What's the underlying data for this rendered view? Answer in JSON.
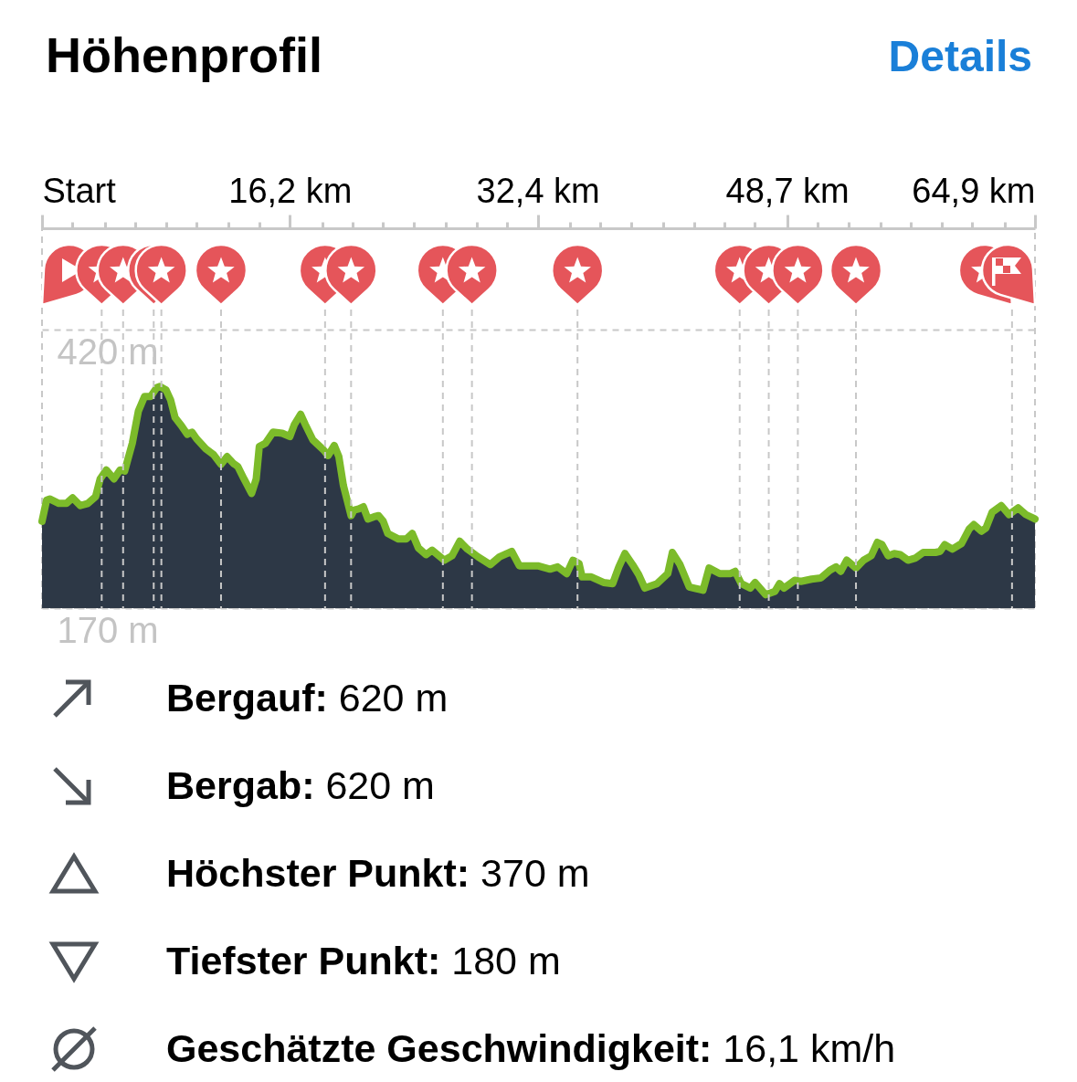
{
  "chart_data": {
    "type": "area",
    "title": "Höhenprofil",
    "annotations": [
      "Details",
      "Bergauf: 620 m",
      "Bergab: 620 m",
      "Höchster Punkt: 370 m",
      "Tiefster Punkt: 180 m",
      "Geschätzte Geschwindigkeit: 16,1 km/h"
    ],
    "x": [
      0,
      0.3,
      0.5,
      1.1,
      1.6,
      2.0,
      2.5,
      3.0,
      3.5,
      3.8,
      4.2,
      4.7,
      5.1,
      5.4,
      5.9,
      6.3,
      6.7,
      7.1,
      7.5,
      7.7,
      8.1,
      8.4,
      8.7,
      9.1,
      9.5,
      9.8,
      10.1,
      10.7,
      11.2,
      11.7,
      12.1,
      12.5,
      12.8,
      13.2,
      13.7,
      14.0,
      14.2,
      14.6,
      15.1,
      15.7,
      16.2,
      16.5,
      16.9,
      17.2,
      17.7,
      18.4,
      18.7,
      19.1,
      19.4,
      19.7,
      20.2,
      20.4,
      20.7,
      21.0,
      21.3,
      21.7,
      22.0,
      22.3,
      22.6,
      23.3,
      23.8,
      24.2,
      24.6,
      25.1,
      25.5,
      26.3,
      26.8,
      27.3,
      27.8,
      28.5,
      29.3,
      29.9,
      30.7,
      31.2,
      32.1,
      32.4,
      33.2,
      33.7,
      34.3,
      34.7,
      35.1,
      35.3,
      35.9,
      36.7,
      37.3,
      37.7,
      38.1,
      38.6,
      39.0,
      39.4,
      40.2,
      40.9,
      41.2,
      41.7,
      42.3,
      43.2,
      43.6,
      44.3,
      45.0,
      45.3,
      45.7,
      46.3,
      46.6,
      47.3,
      47.9,
      48.2,
      48.5,
      49.2,
      49.6,
      50.3,
      50.9,
      51.5,
      51.9,
      52.2,
      52.6,
      53.2,
      53.7,
      54.2,
      54.6,
      54.9,
      55.3,
      55.7,
      56.1,
      56.6,
      57.1,
      57.6,
      58.4,
      58.7,
      59.0,
      59.5,
      60.1,
      60.6,
      60.9,
      61.4,
      61.7,
      62.1,
      62.7,
      63.2,
      63.8,
      64.3,
      64.9
    ],
    "xlim": [
      0,
      64.9
    ],
    "xticks": [
      {
        "value": 0,
        "label": "Start"
      },
      {
        "value": 2.0,
        "label": null
      },
      {
        "value": 4.1,
        "label": null
      },
      {
        "value": 6.1,
        "label": null
      },
      {
        "value": 8.1,
        "label": null
      },
      {
        "value": 10.1,
        "label": null
      },
      {
        "value": 12.2,
        "label": null
      },
      {
        "value": 14.2,
        "label": null
      },
      {
        "value": 16.2,
        "label": "16,2 km"
      },
      {
        "value": 18.3,
        "label": null
      },
      {
        "value": 20.3,
        "label": null
      },
      {
        "value": 22.3,
        "label": null
      },
      {
        "value": 24.3,
        "label": null
      },
      {
        "value": 26.4,
        "label": null
      },
      {
        "value": 28.4,
        "label": null
      },
      {
        "value": 30.4,
        "label": null
      },
      {
        "value": 32.4,
        "label": "32,4 km"
      },
      {
        "value": 34.5,
        "label": null
      },
      {
        "value": 36.5,
        "label": null
      },
      {
        "value": 38.5,
        "label": null
      },
      {
        "value": 40.6,
        "label": null
      },
      {
        "value": 42.6,
        "label": null
      },
      {
        "value": 44.6,
        "label": null
      },
      {
        "value": 46.6,
        "label": null
      },
      {
        "value": 48.7,
        "label": "48,7 km"
      },
      {
        "value": 50.7,
        "label": null
      },
      {
        "value": 52.7,
        "label": null
      },
      {
        "value": 54.8,
        "label": null
      },
      {
        "value": 56.8,
        "label": null
      },
      {
        "value": 58.8,
        "label": null
      },
      {
        "value": 60.8,
        "label": null
      },
      {
        "value": 62.9,
        "label": null
      },
      {
        "value": 64.9,
        "label": "64,9 km"
      }
    ],
    "ylim": [
      170,
      511
    ],
    "yticks": [
      {
        "value": 170,
        "label": "170 m"
      },
      {
        "value": 420,
        "label": "420 m"
      }
    ],
    "grid": "y",
    "series": [
      {
        "color": "#2d3846",
        "values": [
          248,
          267,
          268,
          264,
          264,
          269,
          262,
          264,
          270,
          286,
          294,
          286,
          294,
          293,
          318,
          347,
          360,
          360,
          368,
          369,
          366,
          357,
          341,
          334,
          326,
          328,
          322,
          313,
          308,
          299,
          306,
          300,
          297,
          286,
          273,
          286,
          315,
          318,
          328,
          327,
          324,
          335,
          344,
          335,
          321,
          312,
          307,
          316,
          306,
          280,
          253,
          258,
          259,
          261,
          250,
          252,
          253,
          248,
          237,
          232,
          232,
          237,
          224,
          218,
          222,
          213,
          217,
          230,
          223,
          216,
          209,
          216,
          221,
          208,
          208,
          208,
          205,
          207,
          201,
          213,
          210,
          198,
          198,
          193,
          192,
          207,
          219,
          209,
          200,
          188,
          192,
          201,
          220,
          209,
          189,
          186,
          206,
          201,
          201,
          203,
          192,
          188,
          193,
          182,
          185,
          192,
          188,
          195,
          194,
          196,
          197,
          204,
          207,
          203,
          213,
          206,
          213,
          217,
          229,
          227,
          217,
          219,
          218,
          213,
          215,
          220,
          220,
          221,
          227,
          223,
          228,
          241,
          245,
          239,
          242,
          256,
          262,
          254,
          260,
          254,
          250
        ]
      }
    ],
    "ref_lines": [
      {
        "axis": "x",
        "value": 3.9,
        "color": "#c8c8c8",
        "line_style": "dashed"
      },
      {
        "axis": "x",
        "value": 5.3,
        "color": "#c8c8c8",
        "line_style": "dashed"
      },
      {
        "axis": "x",
        "value": 7.3,
        "color": "#c8c8c8",
        "line_style": "dashed"
      },
      {
        "axis": "x",
        "value": 7.8,
        "color": "#c8c8c8",
        "line_style": "dashed"
      },
      {
        "axis": "x",
        "value": 11.7,
        "color": "#c8c8c8",
        "line_style": "dashed"
      },
      {
        "axis": "x",
        "value": 18.5,
        "color": "#c8c8c8",
        "line_style": "dashed"
      },
      {
        "axis": "x",
        "value": 20.2,
        "color": "#c8c8c8",
        "line_style": "dashed"
      },
      {
        "axis": "x",
        "value": 26.2,
        "color": "#c8c8c8",
        "line_style": "dashed"
      },
      {
        "axis": "x",
        "value": 28.1,
        "color": "#c8c8c8",
        "line_style": "dashed"
      },
      {
        "axis": "x",
        "value": 35.0,
        "color": "#c8c8c8",
        "line_style": "dashed"
      },
      {
        "axis": "x",
        "value": 45.6,
        "color": "#c8c8c8",
        "line_style": "dashed"
      },
      {
        "axis": "x",
        "value": 47.5,
        "color": "#c8c8c8",
        "line_style": "dashed"
      },
      {
        "axis": "x",
        "value": 49.4,
        "color": "#c8c8c8",
        "line_style": "dashed"
      },
      {
        "axis": "x",
        "value": 53.2,
        "color": "#c8c8c8",
        "line_style": "dashed"
      },
      {
        "axis": "x",
        "value": 63.4,
        "color": "#c8c8c8",
        "line_style": "dashed"
      }
    ]
  }
}
